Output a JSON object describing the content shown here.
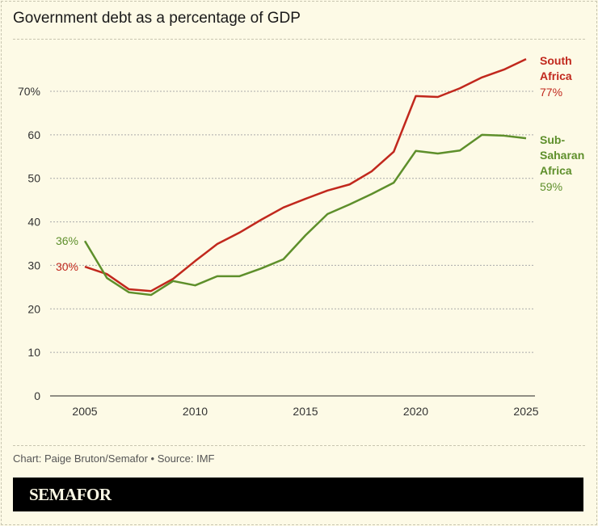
{
  "chart_data": {
    "type": "line",
    "title": "Government debt as a percentage of GDP",
    "xlabel": "",
    "ylabel": "",
    "x": [
      2005,
      2006,
      2007,
      2008,
      2009,
      2010,
      2011,
      2012,
      2013,
      2014,
      2015,
      2016,
      2017,
      2018,
      2019,
      2020,
      2021,
      2022,
      2023,
      2024,
      2025
    ],
    "xticks": [
      "2005",
      "2010",
      "2015",
      "2020",
      "2025"
    ],
    "xtick_values": [
      2005,
      2010,
      2015,
      2020,
      2025
    ],
    "yticks": [
      "0",
      "10",
      "20",
      "30",
      "40",
      "50",
      "60",
      "70%"
    ],
    "ytick_values": [
      0,
      10,
      20,
      30,
      40,
      50,
      60,
      70
    ],
    "ylim": [
      0,
      78
    ],
    "xlim": [
      2005,
      2025
    ],
    "grid": true,
    "series": [
      {
        "name": "South Africa",
        "color": "#c1281d",
        "start_label": "30%",
        "end_label": "77%",
        "label_lines": [
          "South",
          "Africa"
        ],
        "values": [
          29.7,
          28.0,
          24.5,
          24.1,
          26.9,
          31.0,
          34.9,
          37.5,
          40.5,
          43.3,
          45.3,
          47.2,
          48.6,
          51.6,
          56.1,
          68.9,
          68.7,
          70.7,
          73.2,
          75.0,
          77.4
        ]
      },
      {
        "name": "Sub-Saharan Africa",
        "color": "#5e8f2b",
        "start_label": "36%",
        "end_label": "59%",
        "label_lines": [
          "Sub-",
          "Saharan",
          "Africa"
        ],
        "values": [
          35.6,
          27.1,
          23.8,
          23.2,
          26.4,
          25.4,
          27.5,
          27.5,
          29.3,
          31.4,
          36.9,
          41.8,
          44.0,
          46.4,
          49.0,
          56.3,
          55.7,
          56.4,
          60.0,
          59.8,
          59.2
        ]
      }
    ]
  },
  "source": "Chart: Paige Bruton/Semafor • Source: IMF",
  "brand": "SEMAFOR",
  "colors": {
    "background": "#fdfae6",
    "footer": "#000000"
  }
}
